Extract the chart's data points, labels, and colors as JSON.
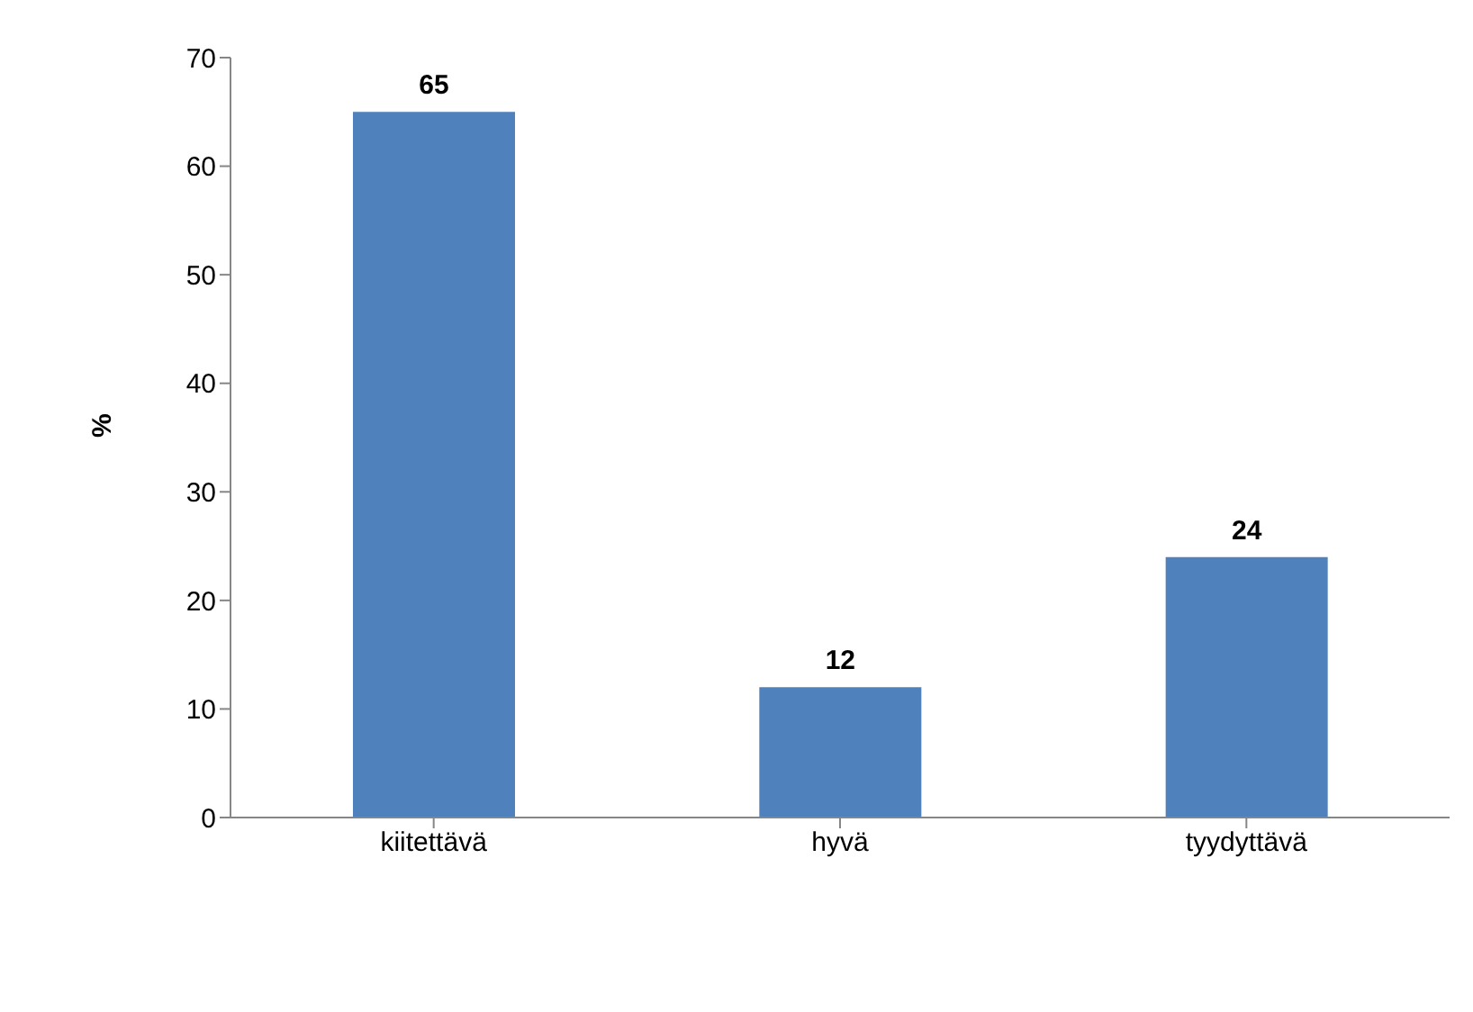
{
  "chart_data": {
    "type": "bar",
    "ylabel": "%",
    "categories": [
      "kiitettävä",
      "hyvä",
      "tyydyttävä"
    ],
    "values": [
      65,
      12,
      24
    ],
    "color": "#4f81bd",
    "ylim": [
      0,
      70
    ],
    "yticks": [
      0,
      10,
      20,
      30,
      40,
      50,
      60,
      70
    ],
    "data_labels": true,
    "grid": false,
    "legend": false
  }
}
